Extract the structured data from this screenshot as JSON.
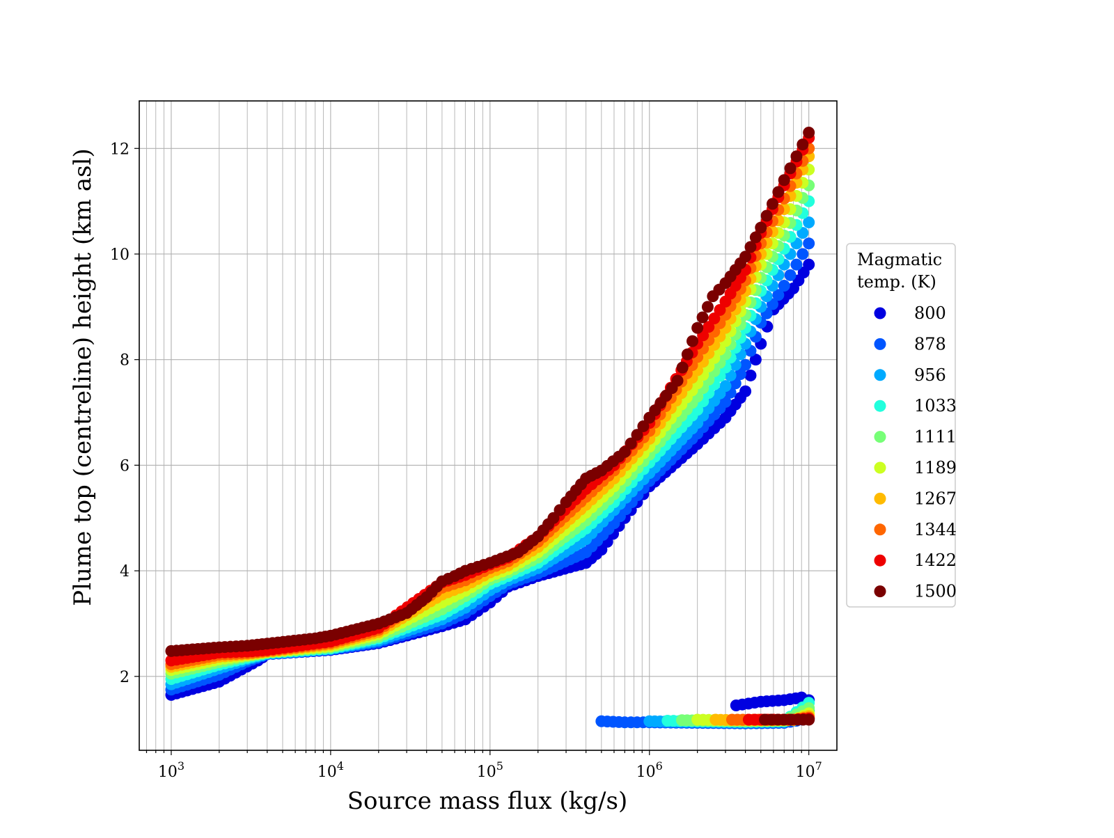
{
  "chart_data": {
    "type": "scatter",
    "title": "",
    "xlabel": "Source mass flux (kg/s)",
    "ylabel": "Plume top (centreline) height (km asl)",
    "xscale": "log",
    "xlim": [
      630,
      15000000
    ],
    "ylim": [
      0.6,
      12.9
    ],
    "grid": "on (major and minor)",
    "legend": {
      "title": "Magmatic temp. (K)",
      "title_lines": [
        "Magmatic",
        "temp. (K)"
      ],
      "placement": "outside right"
    },
    "x_ticks": [
      {
        "value": 1000,
        "base": "10",
        "exp": "3"
      },
      {
        "value": 10000,
        "base": "10",
        "exp": "4"
      },
      {
        "value": 100000,
        "base": "10",
        "exp": "5"
      },
      {
        "value": 1000000,
        "base": "10",
        "exp": "6"
      },
      {
        "value": 10000000,
        "base": "10",
        "exp": "7"
      }
    ],
    "y_ticks": [
      {
        "value": 2,
        "label": "2"
      },
      {
        "value": 4,
        "label": "4"
      },
      {
        "value": 6,
        "label": "6"
      },
      {
        "value": 8,
        "label": "8"
      },
      {
        "value": 10,
        "label": "10"
      },
      {
        "value": 12,
        "label": "12"
      }
    ],
    "series": [
      {
        "name": "800",
        "color": "#0000e0",
        "main": [
          [
            1000,
            1.65
          ],
          [
            2000,
            1.9
          ],
          [
            3500,
            2.3
          ],
          [
            4000,
            2.42
          ],
          [
            10000,
            2.5
          ],
          [
            20000,
            2.63
          ],
          [
            50000,
            2.95
          ],
          [
            70000,
            3.08
          ],
          [
            100000,
            3.4
          ],
          [
            130000,
            3.7
          ],
          [
            200000,
            3.9
          ],
          [
            400000,
            4.15
          ],
          [
            500000,
            4.4
          ],
          [
            700000,
            5.0
          ],
          [
            1000000,
            5.6
          ],
          [
            2000000,
            6.4
          ],
          [
            3000000,
            6.9
          ],
          [
            4000000,
            7.4
          ],
          [
            5000000,
            8.3
          ],
          [
            6000000,
            8.95
          ],
          [
            8000000,
            9.35
          ],
          [
            10000000,
            9.8
          ]
        ],
        "lower": [
          [
            3500000,
            1.45
          ],
          [
            5000000,
            1.52
          ],
          [
            7000000,
            1.55
          ],
          [
            9000000,
            1.6
          ],
          [
            10000000,
            1.55
          ]
        ]
      },
      {
        "name": "878",
        "color": "#0055ff",
        "main": [
          [
            1000,
            1.75
          ],
          [
            2000,
            2.03
          ],
          [
            3000,
            2.28
          ],
          [
            4000,
            2.42
          ],
          [
            10000,
            2.51
          ],
          [
            20000,
            2.65
          ],
          [
            50000,
            3.0
          ],
          [
            70000,
            3.2
          ],
          [
            100000,
            3.52
          ],
          [
            130000,
            3.75
          ],
          [
            200000,
            3.95
          ],
          [
            400000,
            4.35
          ],
          [
            600000,
            4.9
          ],
          [
            1000000,
            5.7
          ],
          [
            2000000,
            6.6
          ],
          [
            3000000,
            7.2
          ],
          [
            4000000,
            7.9
          ],
          [
            5000000,
            8.7
          ],
          [
            7000000,
            9.4
          ],
          [
            10000000,
            10.2
          ]
        ],
        "lower": [
          [
            500000,
            1.15
          ],
          [
            700000,
            1.13
          ],
          [
            1000000,
            1.13
          ],
          [
            2000000,
            1.12
          ],
          [
            4000000,
            1.11
          ],
          [
            7000000,
            1.12
          ],
          [
            10000000,
            1.2
          ]
        ]
      },
      {
        "name": "956",
        "color": "#00aaff",
        "main": [
          [
            1000,
            1.85
          ],
          [
            2000,
            2.15
          ],
          [
            3000,
            2.32
          ],
          [
            4000,
            2.43
          ],
          [
            10000,
            2.52
          ],
          [
            20000,
            2.68
          ],
          [
            50000,
            3.08
          ],
          [
            70000,
            3.3
          ],
          [
            100000,
            3.63
          ],
          [
            130000,
            3.82
          ],
          [
            200000,
            4.05
          ],
          [
            400000,
            4.6
          ],
          [
            600000,
            5.15
          ],
          [
            1000000,
            5.85
          ],
          [
            2000000,
            6.8
          ],
          [
            3000000,
            7.5
          ],
          [
            4000000,
            8.3
          ],
          [
            5000000,
            9.0
          ],
          [
            7000000,
            9.8
          ],
          [
            10000000,
            10.6
          ]
        ],
        "lower": [
          [
            1000000,
            1.15
          ],
          [
            2000000,
            1.14
          ],
          [
            4000000,
            1.13
          ],
          [
            7000000,
            1.14
          ],
          [
            10000000,
            1.35
          ]
        ]
      },
      {
        "name": "1033",
        "color": "#22ffdd",
        "main": [
          [
            1000,
            1.95
          ],
          [
            2000,
            2.22
          ],
          [
            3000,
            2.35
          ],
          [
            4000,
            2.44
          ],
          [
            10000,
            2.53
          ],
          [
            20000,
            2.72
          ],
          [
            50000,
            3.17
          ],
          [
            70000,
            3.42
          ],
          [
            100000,
            3.75
          ],
          [
            130000,
            3.9
          ],
          [
            200000,
            4.15
          ],
          [
            400000,
            4.8
          ],
          [
            600000,
            5.3
          ],
          [
            1000000,
            6.05
          ],
          [
            2000000,
            7.05
          ],
          [
            3000000,
            7.85
          ],
          [
            4000000,
            8.6
          ],
          [
            5000000,
            9.3
          ],
          [
            7000000,
            10.1
          ],
          [
            10000000,
            11.0
          ]
        ],
        "lower": [
          [
            1300000,
            1.16
          ],
          [
            2000000,
            1.15
          ],
          [
            4000000,
            1.14
          ],
          [
            7000000,
            1.15
          ],
          [
            10000000,
            1.5
          ]
        ]
      },
      {
        "name": "1111",
        "color": "#77ff77",
        "main": [
          [
            1000,
            2.05
          ],
          [
            2000,
            2.27
          ],
          [
            3000,
            2.38
          ],
          [
            4000,
            2.45
          ],
          [
            10000,
            2.55
          ],
          [
            20000,
            2.75
          ],
          [
            50000,
            3.27
          ],
          [
            70000,
            3.52
          ],
          [
            100000,
            3.83
          ],
          [
            130000,
            3.97
          ],
          [
            200000,
            4.25
          ],
          [
            400000,
            4.95
          ],
          [
            600000,
            5.45
          ],
          [
            1000000,
            6.2
          ],
          [
            2000000,
            7.3
          ],
          [
            3000000,
            8.1
          ],
          [
            4000000,
            8.85
          ],
          [
            5000000,
            9.55
          ],
          [
            7000000,
            10.35
          ],
          [
            10000000,
            11.3
          ]
        ],
        "lower": [
          [
            1600000,
            1.17
          ],
          [
            2500000,
            1.16
          ],
          [
            4000000,
            1.15
          ],
          [
            7000000,
            1.16
          ],
          [
            10000000,
            1.4
          ]
        ]
      },
      {
        "name": "1189",
        "color": "#ccff22",
        "main": [
          [
            1000,
            2.12
          ],
          [
            2000,
            2.32
          ],
          [
            3000,
            2.4
          ],
          [
            4000,
            2.46
          ],
          [
            10000,
            2.57
          ],
          [
            20000,
            2.8
          ],
          [
            50000,
            3.4
          ],
          [
            70000,
            3.62
          ],
          [
            100000,
            3.9
          ],
          [
            130000,
            4.03
          ],
          [
            200000,
            4.35
          ],
          [
            400000,
            5.1
          ],
          [
            600000,
            5.6
          ],
          [
            1000000,
            6.35
          ],
          [
            2000000,
            7.55
          ],
          [
            3000000,
            8.35
          ],
          [
            4000000,
            9.1
          ],
          [
            5000000,
            9.8
          ],
          [
            7000000,
            10.6
          ],
          [
            10000000,
            11.6
          ]
        ],
        "lower": [
          [
            2000000,
            1.18
          ],
          [
            3000000,
            1.17
          ],
          [
            5000000,
            1.16
          ],
          [
            8000000,
            1.17
          ],
          [
            10000000,
            1.3
          ]
        ]
      },
      {
        "name": "1267",
        "color": "#ffbb00",
        "main": [
          [
            1000,
            2.18
          ],
          [
            2000,
            2.37
          ],
          [
            3000,
            2.42
          ],
          [
            4000,
            2.47
          ],
          [
            10000,
            2.6
          ],
          [
            20000,
            2.84
          ],
          [
            50000,
            3.55
          ],
          [
            70000,
            3.72
          ],
          [
            100000,
            3.97
          ],
          [
            130000,
            4.1
          ],
          [
            200000,
            4.45
          ],
          [
            400000,
            5.25
          ],
          [
            600000,
            5.75
          ],
          [
            1000000,
            6.5
          ],
          [
            2000000,
            7.8
          ],
          [
            3000000,
            8.6
          ],
          [
            4000000,
            9.3
          ],
          [
            5000000,
            10.0
          ],
          [
            7000000,
            10.85
          ],
          [
            10000000,
            11.85
          ]
        ],
        "lower": [
          [
            2600000,
            1.18
          ],
          [
            3500000,
            1.17
          ],
          [
            5000000,
            1.17
          ],
          [
            8000000,
            1.18
          ],
          [
            10000000,
            1.25
          ]
        ]
      },
      {
        "name": "1344",
        "color": "#ff6600",
        "main": [
          [
            1000,
            2.23
          ],
          [
            2000,
            2.41
          ],
          [
            3000,
            2.44
          ],
          [
            4000,
            2.48
          ],
          [
            10000,
            2.63
          ],
          [
            20000,
            2.88
          ],
          [
            50000,
            3.68
          ],
          [
            70000,
            3.82
          ],
          [
            100000,
            4.05
          ],
          [
            130000,
            4.18
          ],
          [
            200000,
            4.55
          ],
          [
            400000,
            5.4
          ],
          [
            600000,
            5.9
          ],
          [
            1000000,
            6.65
          ],
          [
            2000000,
            8.05
          ],
          [
            3000000,
            8.85
          ],
          [
            4000000,
            9.5
          ],
          [
            5000000,
            10.2
          ],
          [
            7000000,
            11.05
          ],
          [
            10000000,
            12.0
          ]
        ],
        "lower": [
          [
            3300000,
            1.18
          ],
          [
            4500000,
            1.18
          ],
          [
            6000000,
            1.18
          ],
          [
            8000000,
            1.18
          ],
          [
            10000000,
            1.22
          ]
        ]
      },
      {
        "name": "1422",
        "color": "#ee0000",
        "main": [
          [
            1000,
            2.3
          ],
          [
            2000,
            2.45
          ],
          [
            3000,
            2.47
          ],
          [
            4000,
            2.5
          ],
          [
            10000,
            2.66
          ],
          [
            20000,
            2.92
          ],
          [
            50000,
            3.78
          ],
          [
            70000,
            3.92
          ],
          [
            100000,
            4.12
          ],
          [
            130000,
            4.25
          ],
          [
            200000,
            4.65
          ],
          [
            400000,
            5.55
          ],
          [
            600000,
            6.0
          ],
          [
            1000000,
            6.8
          ],
          [
            2000000,
            8.3
          ],
          [
            3000000,
            9.1
          ],
          [
            4000000,
            9.7
          ],
          [
            5000000,
            10.4
          ],
          [
            7000000,
            11.3
          ],
          [
            10000000,
            12.2
          ]
        ],
        "lower": [
          [
            4200000,
            1.18
          ],
          [
            6000000,
            1.18
          ],
          [
            8000000,
            1.18
          ],
          [
            10000000,
            1.2
          ]
        ]
      },
      {
        "name": "1500",
        "color": "#7a0000",
        "main": [
          [
            1000,
            2.48
          ],
          [
            2000,
            2.55
          ],
          [
            3000,
            2.58
          ],
          [
            4000,
            2.62
          ],
          [
            8000,
            2.72
          ],
          [
            10000,
            2.77
          ],
          [
            20000,
            3.0
          ],
          [
            30000,
            3.2
          ],
          [
            40000,
            3.5
          ],
          [
            50000,
            3.8
          ],
          [
            60000,
            3.9
          ],
          [
            70000,
            4.0
          ],
          [
            100000,
            4.15
          ],
          [
            150000,
            4.35
          ],
          [
            200000,
            4.65
          ],
          [
            250000,
            5.0
          ],
          [
            300000,
            5.3
          ],
          [
            400000,
            5.75
          ],
          [
            500000,
            5.9
          ],
          [
            700000,
            6.25
          ],
          [
            1000000,
            6.9
          ],
          [
            1500000,
            7.6
          ],
          [
            2000000,
            8.6
          ],
          [
            2500000,
            9.2
          ],
          [
            3000000,
            9.45
          ],
          [
            4000000,
            9.95
          ],
          [
            5000000,
            10.5
          ],
          [
            7000000,
            11.4
          ],
          [
            10000000,
            12.3
          ]
        ],
        "lower": [
          [
            5300000,
            1.18
          ],
          [
            7000000,
            1.18
          ],
          [
            8500000,
            1.18
          ],
          [
            10000000,
            1.18
          ]
        ]
      }
    ]
  }
}
